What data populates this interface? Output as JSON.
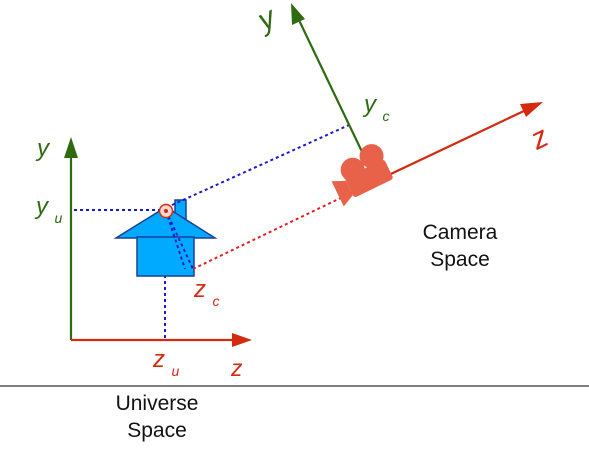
{
  "colors": {
    "universe_axis_y": "#2e6b10",
    "universe_axis_z": "#d42a10",
    "camera_axis_y": "#2e6b10",
    "camera_axis_z": "#d42a10",
    "projection_lines": "#1a1acc",
    "camera_depth_line": "#e02020",
    "house_fill": "#00aaff",
    "house_stroke": "#1a3f9a",
    "camera_body": "#e8624a",
    "ground_line": "#555555"
  },
  "icons": {
    "camera": "movie-camera-icon",
    "house": "house-icon",
    "point": "target-point-icon"
  },
  "universe": {
    "axis_y_label": "y",
    "axis_z_label": "z",
    "yu_main": "y",
    "yu_sub": "u",
    "zu_main": "z",
    "zu_sub": "u",
    "caption_line1": "Universe",
    "caption_line2": "Space"
  },
  "camera": {
    "axis_y_label": "y",
    "axis_z_label": "z",
    "yc_main": "y",
    "yc_sub": "c",
    "zc_main": "z",
    "zc_sub": "c",
    "caption_line1": "Camera",
    "caption_line2": "Space"
  }
}
